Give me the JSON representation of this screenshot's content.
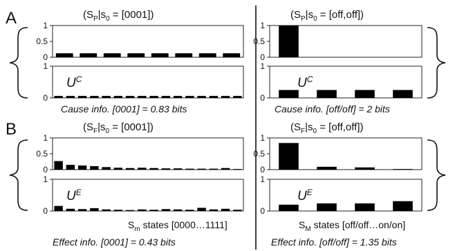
{
  "figure": {
    "panels": [
      {
        "letter": "A",
        "left_title": {
          "pre": "(S",
          "sub": "P",
          "post": "|s",
          "sub2": "0",
          "end": " = [0001])"
        },
        "right_title": {
          "pre": "(S",
          "sub": "P",
          "post": "|s",
          "sub2": "0",
          "end": " = [off,off])"
        },
        "u_label": {
          "base": "U",
          "sup": "C"
        },
        "left_info": "Cause info. [0001] = 0.83 bits",
        "right_info": "Cause info. [off/off] = 2 bits"
      },
      {
        "letter": "B",
        "left_title": {
          "pre": "(S",
          "sub": "F",
          "post": "|s",
          "sub2": "0",
          "end": " = [0001])"
        },
        "right_title": {
          "pre": "(S",
          "sub": "F",
          "post": "|s",
          "sub2": "0",
          "end": " = [off,off])"
        },
        "u_label": {
          "base": "U",
          "sup": "E"
        },
        "left_states": {
          "pre": "S",
          "sub": "m",
          "post": " states [0000…1111]"
        },
        "right_states": {
          "pre": "S",
          "sub": "M",
          "post": " states [off/off…on/on]"
        },
        "left_info": "Effect info. [0001] = 0.43 bits",
        "right_info": "Effect info. [off/off] = 1.35 bits"
      }
    ]
  },
  "chart_data": [
    {
      "id": "A-left-top",
      "type": "bar",
      "ylim": [
        0,
        1
      ],
      "yticks": [
        "0",
        "0.5",
        "1"
      ],
      "values": [
        0.125,
        0.125,
        0.125,
        0.125,
        0.125,
        0.125,
        0.125,
        0.125
      ]
    },
    {
      "id": "A-left-bottom",
      "type": "bar",
      "ylim": [
        0,
        1
      ],
      "yticks": [
        "0",
        "1"
      ],
      "values": [
        0.0625,
        0.0625,
        0.0625,
        0.0625,
        0.0625,
        0.0625,
        0.0625,
        0.0625,
        0.0625,
        0.0625,
        0.0625,
        0.0625,
        0.0625,
        0.0625,
        0.0625,
        0.0625
      ]
    },
    {
      "id": "A-right-top",
      "type": "bar",
      "ylim": [
        0,
        1
      ],
      "yticks": [
        "0",
        "0.5",
        "1"
      ],
      "values": [
        1.0,
        0,
        0,
        0
      ]
    },
    {
      "id": "A-right-bottom",
      "type": "bar",
      "ylim": [
        0,
        1
      ],
      "yticks": [
        "0",
        "1"
      ],
      "values": [
        0.25,
        0.25,
        0.25,
        0.25
      ]
    },
    {
      "id": "B-left-top",
      "type": "bar",
      "ylim": [
        0,
        1
      ],
      "yticks": [
        "0",
        "0.5",
        "1"
      ],
      "values": [
        0.27,
        0.15,
        0.13,
        0.11,
        0.08,
        0.06,
        0.05,
        0.06,
        0.05,
        0.04,
        0.04,
        0.03,
        0.03,
        0.03,
        0.05,
        0.02
      ]
    },
    {
      "id": "B-left-bottom",
      "type": "bar",
      "ylim": [
        0,
        1
      ],
      "yticks": [
        "0",
        "1"
      ],
      "values": [
        0.16,
        0.07,
        0.06,
        0.09,
        0.05,
        0.04,
        0.03,
        0.05,
        0.04,
        0.06,
        0.05,
        0.04,
        0.1,
        0.05,
        0.07,
        0.04
      ]
    },
    {
      "id": "B-right-top",
      "type": "bar",
      "ylim": [
        0,
        1
      ],
      "yticks": [
        "0",
        "0.5",
        "1"
      ],
      "values": [
        0.84,
        0.09,
        0.07,
        0.02
      ]
    },
    {
      "id": "B-right-bottom",
      "type": "bar",
      "ylim": [
        0,
        1
      ],
      "yticks": [
        "0",
        "1"
      ],
      "values": [
        0.2,
        0.24,
        0.24,
        0.31
      ]
    }
  ]
}
